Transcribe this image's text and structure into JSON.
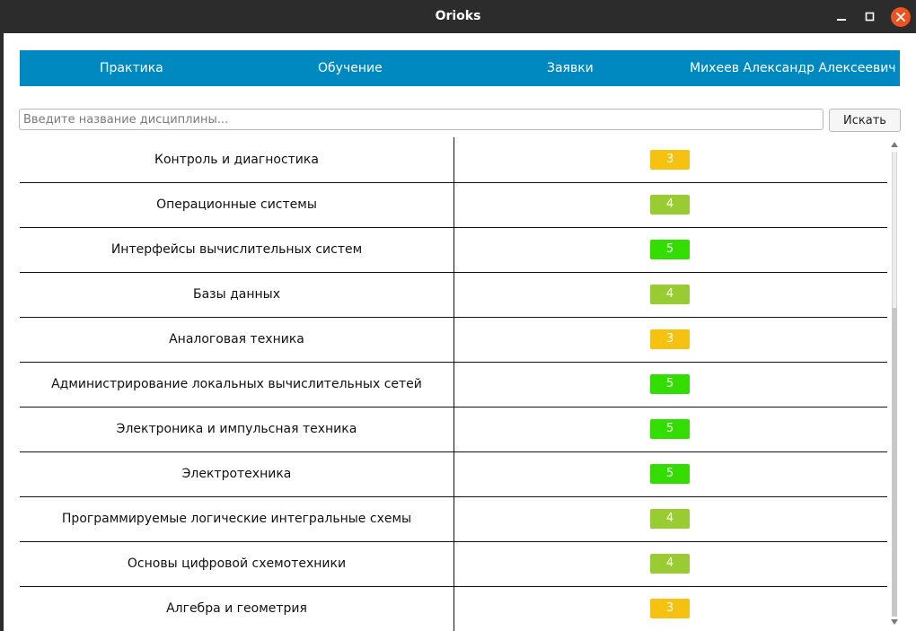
{
  "window": {
    "title": "Orioks"
  },
  "navbar": {
    "items": [
      {
        "label": "Практика"
      },
      {
        "label": "Обучение"
      },
      {
        "label": "Заявки"
      },
      {
        "label": "Михеев Александр Алексеевич"
      }
    ]
  },
  "search": {
    "placeholder": "Введите название дисциплины...",
    "value": "",
    "button_label": "Искать"
  },
  "grade_colors": {
    "3": "#f5c211",
    "4": "#99cc33",
    "5": "#33dd00"
  },
  "disciplines": [
    {
      "name": "Контроль и диагностика",
      "grade": "3"
    },
    {
      "name": "Операционные системы",
      "grade": "4"
    },
    {
      "name": "Интерфейсы вычислительных систем",
      "grade": "5"
    },
    {
      "name": "Базы данных",
      "grade": "4"
    },
    {
      "name": "Аналоговая техника",
      "grade": "3"
    },
    {
      "name": "Администрирование локальных вычислительных сетей",
      "grade": "5"
    },
    {
      "name": "Электроника и импульсная техника",
      "grade": "5"
    },
    {
      "name": "Электротехника",
      "grade": "5"
    },
    {
      "name": "Программируемые логические интегральные схемы",
      "grade": "4"
    },
    {
      "name": "Основы цифровой схемотехники",
      "grade": "4"
    },
    {
      "name": "Алгебра и геометрия",
      "grade": "3"
    }
  ],
  "icons": {
    "minimize": "minimize-icon",
    "maximize": "maximize-icon",
    "close": "close-icon",
    "scroll_up": "arrow-up-icon",
    "scroll_down": "arrow-down-icon"
  }
}
